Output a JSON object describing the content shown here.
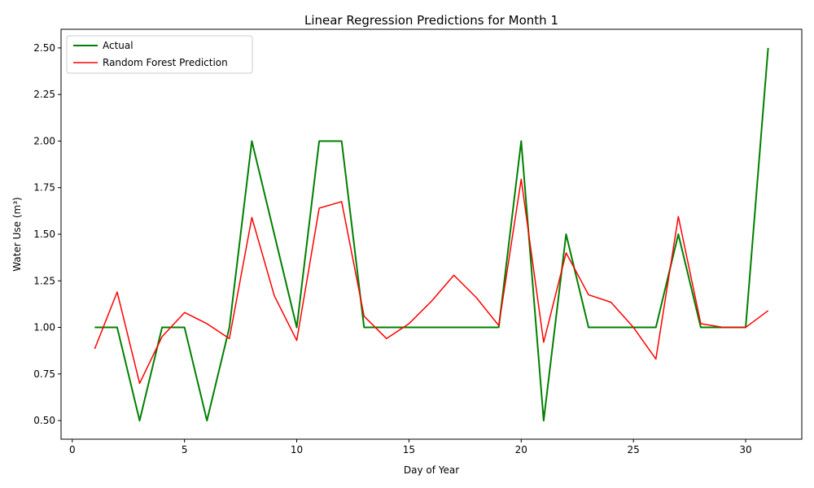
{
  "chart_data": {
    "type": "line",
    "title": "Linear Regression Predictions for Month 1",
    "xlabel": "Day of Year",
    "ylabel": "Water Use (m³)",
    "xlim": [
      -0.5,
      32.5
    ],
    "ylim": [
      0.4,
      2.6
    ],
    "xticks": [
      0,
      5,
      10,
      15,
      20,
      25,
      30
    ],
    "yticks": [
      0.5,
      0.75,
      1.0,
      1.25,
      1.5,
      1.75,
      2.0,
      2.25,
      2.5
    ],
    "grid": false,
    "legend_position": "top-left",
    "x": [
      1,
      2,
      3,
      4,
      5,
      6,
      7,
      8,
      9,
      10,
      11,
      12,
      13,
      14,
      15,
      16,
      17,
      18,
      19,
      20,
      21,
      22,
      23,
      24,
      25,
      26,
      27,
      28,
      29,
      30,
      31
    ],
    "series": [
      {
        "name": "Actual",
        "color": "#008000",
        "values": [
          1.0,
          1.0,
          0.5,
          1.0,
          1.0,
          0.5,
          1.0,
          2.0,
          1.5,
          1.0,
          2.0,
          2.0,
          1.0,
          1.0,
          1.0,
          1.0,
          1.0,
          1.0,
          1.0,
          2.0,
          0.5,
          1.5,
          1.0,
          1.0,
          1.0,
          1.0,
          1.5,
          1.0,
          1.0,
          1.0,
          2.5
        ]
      },
      {
        "name": "Random Forest Prediction",
        "color": "#ff0000",
        "values": [
          0.885,
          1.19,
          0.7,
          0.95,
          1.08,
          1.02,
          0.94,
          1.59,
          1.17,
          0.93,
          1.64,
          1.675,
          1.06,
          0.94,
          1.02,
          1.14,
          1.28,
          1.16,
          1.01,
          1.795,
          0.92,
          1.4,
          1.175,
          1.135,
          1.0,
          0.83,
          1.595,
          1.02,
          1.0,
          1.0,
          1.09
        ]
      }
    ]
  }
}
